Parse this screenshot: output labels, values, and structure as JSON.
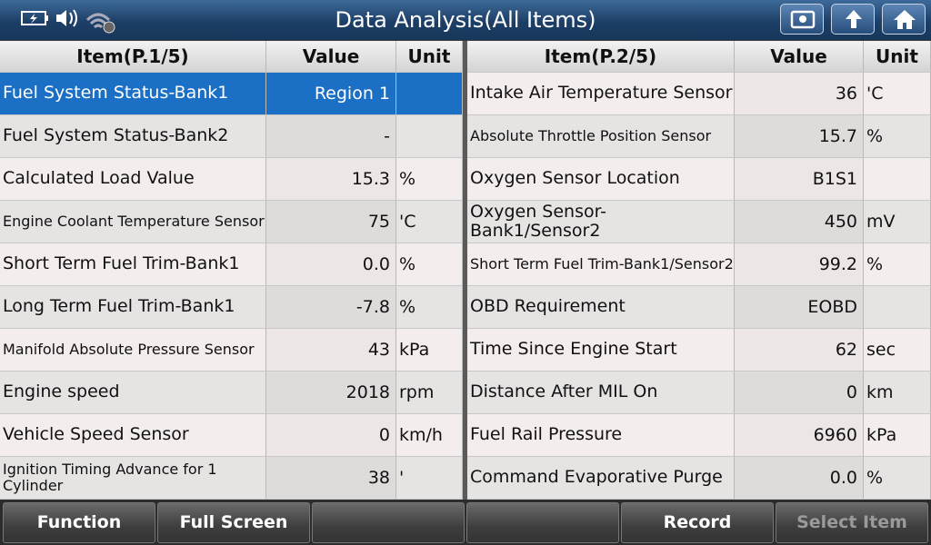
{
  "header": {
    "title": "Data Analysis(All Items)"
  },
  "tables": [
    {
      "header": {
        "item": "Item(P.1/5)",
        "value": "Value",
        "unit": "Unit"
      },
      "rows": [
        {
          "item": "Fuel System Status-Bank1",
          "value": "Region 1"
        },
        {
          "item": "Fuel System Status-Bank2",
          "value": "-"
        },
        {
          "item": "Calculated Load Value",
          "value": "15.3",
          "unit": "%"
        },
        {
          "item": "Engine Coolant Temperature Sensor",
          "value": "75",
          "unit": "'C"
        },
        {
          "item": "Short Term Fuel Trim-Bank1",
          "value": "0.0",
          "unit": "%"
        },
        {
          "item": "Long Term Fuel Trim-Bank1",
          "value": "-7.8",
          "unit": "%"
        },
        {
          "item": "Manifold Absolute Pressure Sensor",
          "value": "43",
          "unit": "kPa"
        },
        {
          "item": "Engine speed",
          "value": "2018",
          "unit": "rpm"
        },
        {
          "item": "Vehicle Speed Sensor",
          "value": "0",
          "unit": "km/h"
        },
        {
          "item": "Ignition Timing Advance for 1 Cylinder",
          "value": "38",
          "unit": "'"
        }
      ]
    },
    {
      "header": {
        "item": "Item(P.2/5)",
        "value": "Value",
        "unit": "Unit"
      },
      "rows": [
        {
          "item": "Intake Air Temperature Sensor",
          "value": "36",
          "unit": "'C"
        },
        {
          "item": "Absolute Throttle Position Sensor",
          "value": "15.7",
          "unit": "%"
        },
        {
          "item": "Oxygen Sensor Location",
          "value": "B1S1"
        },
        {
          "item": "Oxygen Sensor-Bank1/Sensor2",
          "value": "450",
          "unit": "mV"
        },
        {
          "item": "Short Term Fuel Trim-Bank1/Sensor2",
          "value": "99.2",
          "unit": "%"
        },
        {
          "item": "OBD Requirement",
          "value": "EOBD"
        },
        {
          "item": "Time Since Engine Start",
          "value": "62",
          "unit": "sec"
        },
        {
          "item": "Distance After MIL On",
          "value": "0",
          "unit": "km"
        },
        {
          "item": "Fuel Rail Pressure",
          "value": "6960",
          "unit": "kPa"
        },
        {
          "item": "Command Evaporative Purge",
          "value": "0.0",
          "unit": "%"
        }
      ]
    }
  ],
  "footer": {
    "buttons": [
      "Function",
      "Full Screen",
      "Record",
      "Select Item"
    ]
  }
}
